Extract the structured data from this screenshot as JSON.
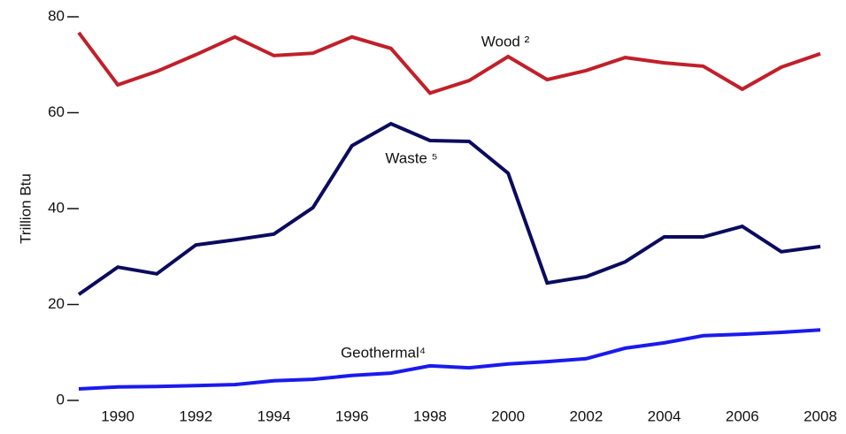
{
  "chart_data": {
    "type": "line",
    "y_label": "Trillion Btu",
    "x": [
      1989,
      1990,
      1991,
      1992,
      1993,
      1994,
      1995,
      1996,
      1997,
      1998,
      1999,
      2000,
      2001,
      2002,
      2003,
      2004,
      2005,
      2006,
      2007,
      2008
    ],
    "series": [
      {
        "name": "Wood ²",
        "color": "#c0202a",
        "values": [
          76.7,
          65.8,
          68.6,
          72.1,
          75.8,
          71.9,
          72.4,
          75.8,
          73.4,
          64.1,
          66.7,
          71.7,
          66.9,
          68.8,
          71.5,
          70.4,
          69.7,
          64.9,
          69.5,
          72.3
        ]
      },
      {
        "name": "Waste ⁵",
        "color": "#0b0b5e",
        "values": [
          22.1,
          27.8,
          26.4,
          32.4,
          33.5,
          34.7,
          40.2,
          53.1,
          57.7,
          54.2,
          54.0,
          47.4,
          24.5,
          25.8,
          28.9,
          34.1,
          34.1,
          36.3,
          31.0,
          32.1
        ]
      },
      {
        "name": "Geothermal⁴",
        "color": "#1a1aee",
        "values": [
          2.4,
          2.8,
          2.9,
          3.1,
          3.3,
          4.1,
          4.4,
          5.2,
          5.7,
          7.2,
          6.8,
          7.6,
          8.1,
          8.7,
          10.9,
          12.0,
          13.5,
          13.8,
          14.2,
          14.7
        ]
      }
    ],
    "xlim": [
      1989,
      2008
    ],
    "xticks": [
      1990,
      1992,
      1994,
      1996,
      1998,
      2000,
      2002,
      2004,
      2006,
      2008
    ],
    "ylim": [
      0,
      80
    ],
    "yticks": [
      0,
      20,
      40,
      60,
      80
    ]
  }
}
